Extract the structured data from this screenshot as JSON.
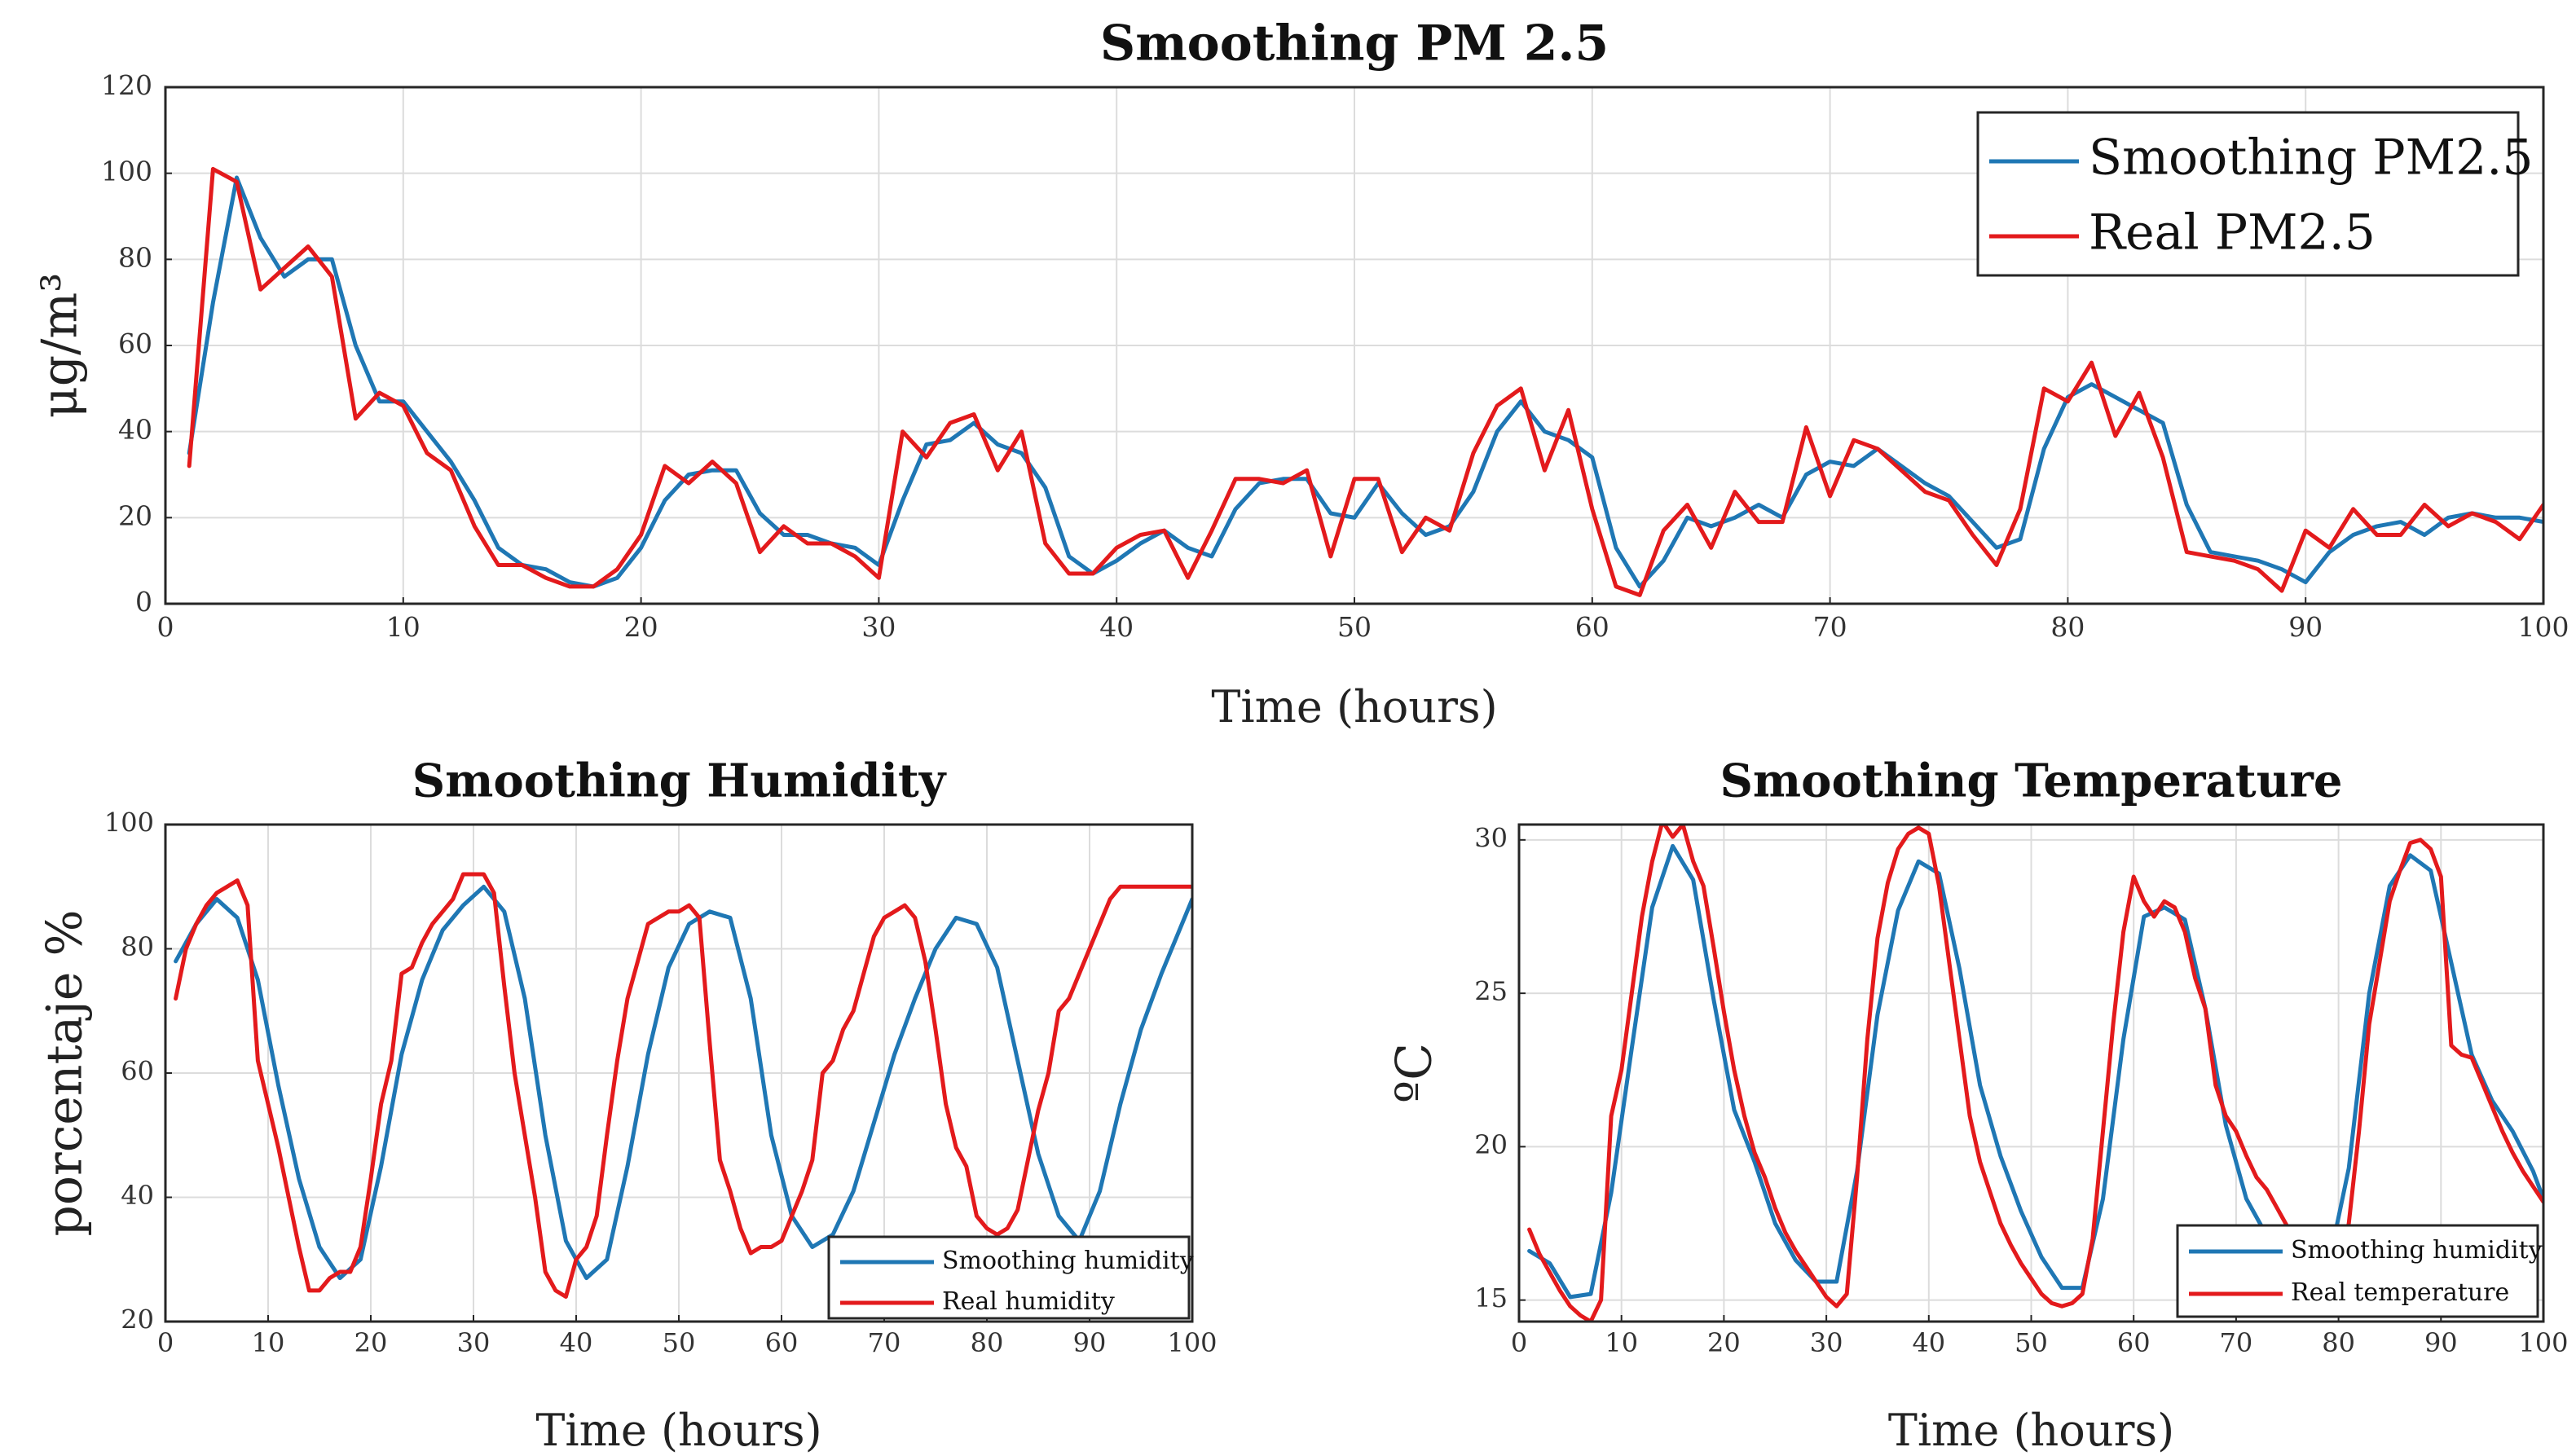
{
  "colors": {
    "smoothing": "#1f77b4",
    "real": "#e31a1c"
  },
  "chart_data": [
    {
      "type": "line",
      "title": "Smoothing PM 2.5",
      "xlabel": "Time (hours)",
      "ylabel": "μg/m³",
      "xlim": [
        0,
        100
      ],
      "ylim": [
        0,
        120
      ],
      "xticks": [
        0,
        10,
        20,
        30,
        40,
        50,
        60,
        70,
        80,
        90,
        100
      ],
      "yticks": [
        0,
        20,
        40,
        60,
        80,
        100,
        120
      ],
      "grid": true,
      "legend_position": "top-right",
      "series": [
        {
          "name": "Smoothing PM2.5",
          "color": "smoothing",
          "x": [
            1,
            2,
            3,
            4,
            5,
            6,
            7,
            8,
            9,
            10,
            11,
            12,
            13,
            14,
            15,
            16,
            17,
            18,
            19,
            20,
            21,
            22,
            23,
            24,
            25,
            26,
            27,
            28,
            29,
            30,
            31,
            32,
            33,
            34,
            35,
            36,
            37,
            38,
            39,
            40,
            41,
            42,
            43,
            44,
            45,
            46,
            47,
            48,
            49,
            50,
            51,
            52,
            53,
            54,
            55,
            56,
            57,
            58,
            59,
            60,
            61,
            62,
            63,
            64,
            65,
            66,
            67,
            68,
            69,
            70,
            71,
            72,
            73,
            74,
            75,
            76,
            77,
            78,
            79,
            80,
            81,
            82,
            83,
            84,
            85,
            86,
            87,
            88,
            89,
            90,
            91,
            92,
            93,
            94,
            95,
            96,
            97,
            98,
            99,
            100
          ],
          "values": [
            35,
            70,
            99,
            85,
            76,
            80,
            80,
            60,
            47,
            47,
            40,
            33,
            24,
            13,
            9,
            8,
            5,
            4,
            6,
            13,
            24,
            30,
            31,
            31,
            21,
            16,
            16,
            14,
            13,
            9,
            24,
            37,
            38,
            42,
            37,
            35,
            27,
            11,
            7,
            10,
            14,
            17,
            13,
            11,
            22,
            28,
            29,
            29,
            21,
            20,
            28,
            21,
            16,
            18,
            26,
            40,
            47,
            40,
            38,
            34,
            13,
            4,
            10,
            20,
            18,
            20,
            23,
            20,
            30,
            33,
            32,
            36,
            32,
            28,
            25,
            19,
            13,
            15,
            36,
            48,
            51,
            48,
            45,
            42,
            23,
            12,
            11,
            10,
            8,
            5,
            12,
            16,
            18,
            19,
            16,
            20,
            21,
            20,
            20,
            19
          ]
        },
        {
          "name": "Real PM2.5",
          "color": "real",
          "x": [
            1,
            2,
            3,
            4,
            5,
            6,
            7,
            8,
            9,
            10,
            11,
            12,
            13,
            14,
            15,
            16,
            17,
            18,
            19,
            20,
            21,
            22,
            23,
            24,
            25,
            26,
            27,
            28,
            29,
            30,
            31,
            32,
            33,
            34,
            35,
            36,
            37,
            38,
            39,
            40,
            41,
            42,
            43,
            44,
            45,
            46,
            47,
            48,
            49,
            50,
            51,
            52,
            53,
            54,
            55,
            56,
            57,
            58,
            59,
            60,
            61,
            62,
            63,
            64,
            65,
            66,
            67,
            68,
            69,
            70,
            71,
            72,
            73,
            74,
            75,
            76,
            77,
            78,
            79,
            80,
            81,
            82,
            83,
            84,
            85,
            86,
            87,
            88,
            89,
            90,
            91,
            92,
            93,
            94,
            95,
            96,
            97,
            98,
            99,
            100
          ],
          "values": [
            32,
            101,
            98,
            73,
            78,
            83,
            76,
            43,
            49,
            46,
            35,
            31,
            18,
            9,
            9,
            6,
            4,
            4,
            8,
            16,
            32,
            28,
            33,
            28,
            12,
            18,
            14,
            14,
            11,
            6,
            40,
            34,
            42,
            44,
            31,
            40,
            14,
            7,
            7,
            13,
            16,
            17,
            6,
            17,
            29,
            29,
            28,
            31,
            11,
            29,
            29,
            12,
            20,
            17,
            35,
            46,
            50,
            31,
            45,
            22,
            4,
            2,
            17,
            23,
            13,
            26,
            19,
            19,
            41,
            25,
            38,
            36,
            31,
            26,
            24,
            16,
            9,
            22,
            50,
            47,
            56,
            39,
            49,
            34,
            12,
            11,
            10,
            8,
            3,
            17,
            13,
            22,
            16,
            16,
            23,
            18,
            21,
            19,
            15,
            23
          ]
        }
      ]
    },
    {
      "type": "line",
      "title": "Smoothing Humidity",
      "xlabel": "Time (hours)",
      "ylabel": "porcentaje %",
      "xlim": [
        0,
        100
      ],
      "ylim": [
        20,
        100
      ],
      "xticks": [
        0,
        10,
        20,
        30,
        40,
        50,
        60,
        70,
        80,
        90,
        100
      ],
      "yticks": [
        20,
        40,
        60,
        80,
        100
      ],
      "grid": true,
      "legend_position": "bottom-right",
      "series": [
        {
          "name": "Smoothing humidity",
          "color": "smoothing",
          "x": [
            1,
            3,
            5,
            7,
            9,
            11,
            13,
            15,
            17,
            19,
            21,
            23,
            25,
            27,
            29,
            31,
            33,
            35,
            37,
            39,
            41,
            43,
            45,
            47,
            49,
            51,
            53,
            55,
            57,
            59,
            61,
            63,
            65,
            67,
            69,
            71,
            73,
            75,
            77,
            79,
            81,
            83,
            85,
            87,
            89,
            91,
            93,
            95,
            97,
            99,
            100
          ],
          "values": [
            78,
            84,
            88,
            85,
            75,
            58,
            43,
            32,
            27,
            30,
            45,
            63,
            75,
            83,
            87,
            90,
            86,
            72,
            50,
            33,
            27,
            30,
            45,
            63,
            77,
            84,
            86,
            85,
            72,
            50,
            37,
            32,
            34,
            41,
            52,
            63,
            72,
            80,
            85,
            84,
            77,
            62,
            47,
            37,
            33,
            41,
            55,
            67,
            76,
            84,
            88
          ]
        },
        {
          "name": "Real humidity",
          "color": "real",
          "x": [
            1,
            2,
            3,
            4,
            5,
            6,
            7,
            8,
            9,
            10,
            11,
            12,
            13,
            14,
            15,
            16,
            17,
            18,
            19,
            20,
            21,
            22,
            23,
            24,
            25,
            26,
            27,
            28,
            29,
            30,
            31,
            32,
            33,
            34,
            35,
            36,
            37,
            38,
            39,
            40,
            41,
            42,
            43,
            44,
            45,
            46,
            47,
            48,
            49,
            50,
            51,
            52,
            53,
            54,
            55,
            56,
            57,
            58,
            59,
            60,
            61,
            62,
            63,
            64,
            65,
            66,
            67,
            68,
            69,
            70,
            71,
            72,
            73,
            74,
            75,
            76,
            77,
            78,
            79,
            80,
            81,
            82,
            83,
            84,
            85,
            86,
            87,
            88,
            89,
            90,
            91,
            92,
            93,
            94,
            95,
            96,
            97,
            98,
            99,
            100
          ],
          "values": [
            72,
            80,
            84,
            87,
            89,
            90,
            91,
            87,
            62,
            55,
            48,
            40,
            32,
            25,
            25,
            27,
            28,
            28,
            32,
            43,
            55,
            62,
            76,
            77,
            81,
            84,
            86,
            88,
            92,
            92,
            92,
            89,
            74,
            60,
            50,
            40,
            28,
            25,
            24,
            30,
            32,
            37,
            50,
            62,
            72,
            78,
            84,
            85,
            86,
            86,
            87,
            85,
            65,
            46,
            41,
            35,
            31,
            32,
            32,
            33,
            37,
            41,
            46,
            60,
            62,
            67,
            70,
            76,
            82,
            85,
            86,
            87,
            85,
            78,
            67,
            55,
            48,
            45,
            37,
            35,
            34,
            35,
            38,
            46,
            54,
            60,
            70,
            72,
            76,
            80,
            84,
            88,
            90,
            90,
            90,
            90,
            90,
            90,
            90,
            90
          ]
        }
      ]
    },
    {
      "type": "line",
      "title": "Smoothing Temperature",
      "xlabel": "Time (hours)",
      "ylabel": "ºC",
      "xlim": [
        0,
        100
      ],
      "ylim": [
        14.3,
        30.5
      ],
      "xticks": [
        0,
        10,
        20,
        30,
        40,
        50,
        60,
        70,
        80,
        90,
        100
      ],
      "yticks": [
        15,
        20,
        25,
        30
      ],
      "grid": true,
      "legend_position": "bottom-right",
      "series": [
        {
          "name": "Smoothing humidity",
          "color": "smoothing",
          "x": [
            1,
            3,
            5,
            7,
            9,
            11,
            13,
            15,
            17,
            19,
            21,
            23,
            25,
            27,
            29,
            31,
            33,
            35,
            37,
            39,
            41,
            43,
            45,
            47,
            49,
            51,
            53,
            55,
            57,
            59,
            61,
            63,
            65,
            67,
            69,
            71,
            73,
            75,
            77,
            79,
            81,
            83,
            85,
            87,
            89,
            91,
            93,
            95,
            97,
            99,
            100
          ],
          "values": [
            16.6,
            16.2,
            15.1,
            15.2,
            18.5,
            23.2,
            27.8,
            29.8,
            28.7,
            24.8,
            21.2,
            19.5,
            17.5,
            16.3,
            15.6,
            15.6,
            19.2,
            24.3,
            27.7,
            29.3,
            28.9,
            25.8,
            22.0,
            19.7,
            17.9,
            16.4,
            15.4,
            15.4,
            18.3,
            23.5,
            27.5,
            27.8,
            27.4,
            24.5,
            20.7,
            18.3,
            17.1,
            16.2,
            15.7,
            16.1,
            19.3,
            25.0,
            28.5,
            29.5,
            29.0,
            26.0,
            23.0,
            21.5,
            20.5,
            19.2,
            18.3
          ]
        },
        {
          "name": "Real temperature",
          "color": "real",
          "x": [
            1,
            2,
            3,
            4,
            5,
            6,
            7,
            8,
            9,
            10,
            11,
            12,
            13,
            14,
            15,
            16,
            17,
            18,
            19,
            20,
            21,
            22,
            23,
            24,
            25,
            26,
            27,
            28,
            29,
            30,
            31,
            32,
            33,
            34,
            35,
            36,
            37,
            38,
            39,
            40,
            41,
            42,
            43,
            44,
            45,
            46,
            47,
            48,
            49,
            50,
            51,
            52,
            53,
            54,
            55,
            56,
            57,
            58,
            59,
            60,
            61,
            62,
            63,
            64,
            65,
            66,
            67,
            68,
            69,
            70,
            71,
            72,
            73,
            74,
            75,
            76,
            77,
            78,
            79,
            80,
            81,
            82,
            83,
            84,
            85,
            86,
            87,
            88,
            89,
            90,
            91,
            92,
            93,
            94,
            95,
            96,
            97,
            98,
            99,
            100
          ],
          "values": [
            17.3,
            16.5,
            15.9,
            15.3,
            14.8,
            14.5,
            14.3,
            15.0,
            21.0,
            22.5,
            25.0,
            27.5,
            29.3,
            30.6,
            30.1,
            30.5,
            29.3,
            28.5,
            26.5,
            24.4,
            22.5,
            21.0,
            19.8,
            19.0,
            18.0,
            17.2,
            16.6,
            16.1,
            15.6,
            15.1,
            14.8,
            15.2,
            19.0,
            23.5,
            26.8,
            28.6,
            29.7,
            30.2,
            30.4,
            30.2,
            28.5,
            26.0,
            23.5,
            21.0,
            19.5,
            18.5,
            17.5,
            16.8,
            16.2,
            15.7,
            15.2,
            14.9,
            14.8,
            14.9,
            15.2,
            17.0,
            20.5,
            24.0,
            27.0,
            28.8,
            28.0,
            27.5,
            28.0,
            27.8,
            27.0,
            25.5,
            24.5,
            22.0,
            21.0,
            20.5,
            19.7,
            19.0,
            18.6,
            18.0,
            17.4,
            16.8,
            16.2,
            15.9,
            15.6,
            16.0,
            17.5,
            20.5,
            24.0,
            26.0,
            28.0,
            29.0,
            29.9,
            30.0,
            29.7,
            28.8,
            23.3,
            23.0,
            22.9,
            22.1,
            21.3,
            20.5,
            19.8,
            19.2,
            18.7,
            18.2
          ]
        }
      ]
    }
  ]
}
